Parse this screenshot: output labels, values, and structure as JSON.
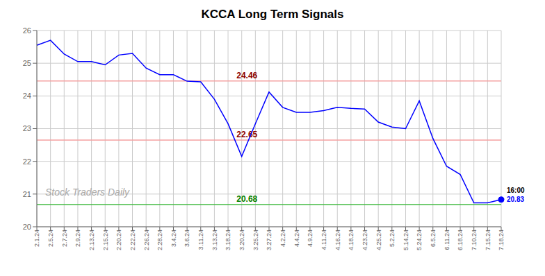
{
  "chart_data": {
    "type": "line",
    "title": "KCCA Long Term Signals",
    "watermark": "Stock Traders Daily",
    "categories": [
      "2.1.24",
      "2.5.24",
      "2.7.24",
      "2.9.24",
      "2.13.24",
      "2.15.24",
      "2.20.24",
      "2.22.24",
      "2.26.24",
      "2.28.24",
      "3.4.24",
      "3.6.24",
      "3.11.24",
      "3.13.24",
      "3.18.24",
      "3.20.24",
      "3.25.24",
      "3.27.24",
      "4.2.24",
      "4.4.24",
      "4.9.24",
      "4.11.24",
      "4.16.24",
      "4.18.24",
      "4.23.24",
      "4.25.24",
      "5.2.24",
      "5.14.24",
      "5.24.24",
      "6.5.24",
      "6.11.24",
      "6.18.24",
      "7.10.24",
      "7.15.24",
      "7.18.24"
    ],
    "values": [
      25.55,
      25.7,
      25.28,
      25.05,
      25.05,
      24.95,
      25.25,
      25.3,
      24.85,
      24.65,
      24.65,
      24.45,
      24.43,
      23.9,
      23.15,
      22.15,
      23.15,
      24.12,
      23.65,
      23.5,
      23.5,
      23.55,
      23.65,
      23.62,
      23.6,
      23.2,
      23.05,
      23.0,
      23.85,
      22.7,
      21.85,
      21.6,
      20.73,
      20.73,
      20.83
    ],
    "color": "blue",
    "ylim": [
      20.0,
      26.0
    ],
    "yticks": [
      20,
      21,
      22,
      23,
      24,
      25,
      26
    ],
    "grid": true,
    "hlines": [
      {
        "value": 24.46,
        "color": "#f4a0a0",
        "label": "24.46",
        "label_color": "darkred"
      },
      {
        "value": 22.65,
        "color": "#f4a0a0",
        "label": "22.65",
        "label_color": "darkred"
      },
      {
        "value": 20.68,
        "color": "#44bb44",
        "label": "20.68",
        "label_color": "green"
      }
    ],
    "annotations": [
      {
        "text": "16:00",
        "color": "black"
      },
      {
        "text": "20.83",
        "color": "blue"
      }
    ]
  }
}
